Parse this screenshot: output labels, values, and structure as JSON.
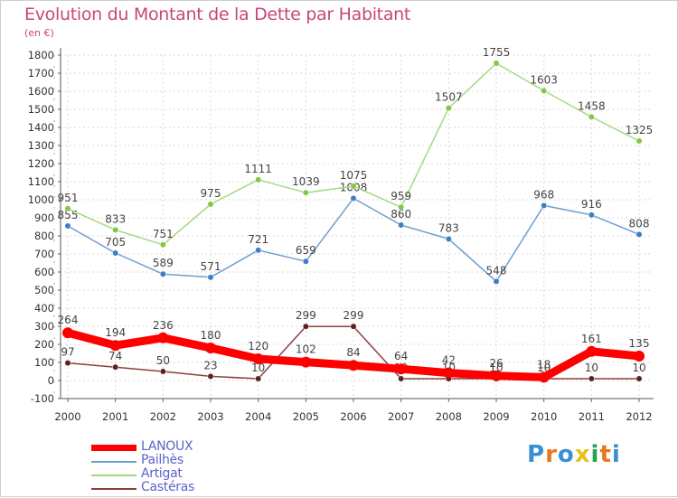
{
  "title": "Evolution du Montant de la Dette par Habitant",
  "unit": "(en €)",
  "brand": {
    "text": "Proxiti",
    "letters": [
      "P",
      "r",
      "o",
      "x",
      "i",
      "t",
      "i"
    ],
    "letter_colors": [
      "#3a8fd1",
      "#e87722",
      "#3a8fd1",
      "#e8c21a",
      "#2aa34a",
      "#e87722",
      "#3a8fd1"
    ]
  },
  "chart_data": {
    "type": "line",
    "title": "Evolution du Montant de la Dette par Habitant",
    "ylabel": "(en €)",
    "xlabel": "",
    "x": [
      2000,
      2001,
      2002,
      2003,
      2004,
      2005,
      2006,
      2007,
      2008,
      2009,
      2010,
      2011,
      2012
    ],
    "ylim": [
      -100,
      1800
    ],
    "yticks": [
      -100,
      0,
      100,
      200,
      300,
      400,
      500,
      600,
      700,
      800,
      900,
      1000,
      1100,
      1200,
      1300,
      1400,
      1500,
      1600,
      1700,
      1800
    ],
    "grid": true,
    "legend_position": "bottom-left",
    "series": [
      {
        "name": "LANOUX",
        "color": "#ff0000",
        "marker_color": "#ff0000",
        "emphasis": true,
        "values": [
          264,
          194,
          236,
          180,
          120,
          102,
          84,
          64,
          42,
          26,
          18,
          161,
          135
        ]
      },
      {
        "name": "Pailhès",
        "color": "#6e9ed0",
        "marker_color": "#3d7fc4",
        "emphasis": false,
        "values": [
          855,
          705,
          589,
          571,
          721,
          659,
          1008,
          860,
          783,
          548,
          968,
          916,
          808
        ]
      },
      {
        "name": "Artigat",
        "color": "#a3d982",
        "marker_color": "#7fc943",
        "emphasis": false,
        "values": [
          951,
          833,
          751,
          975,
          1111,
          1039,
          1075,
          959,
          1507,
          1755,
          1603,
          1458,
          1325
        ]
      },
      {
        "name": "Castéras",
        "color": "#8a3f3f",
        "marker_color": "#5e1f1f",
        "emphasis": false,
        "values": [
          97,
          74,
          50,
          23,
          10,
          299,
          299,
          10,
          10,
          10,
          10,
          10,
          10
        ]
      }
    ]
  }
}
